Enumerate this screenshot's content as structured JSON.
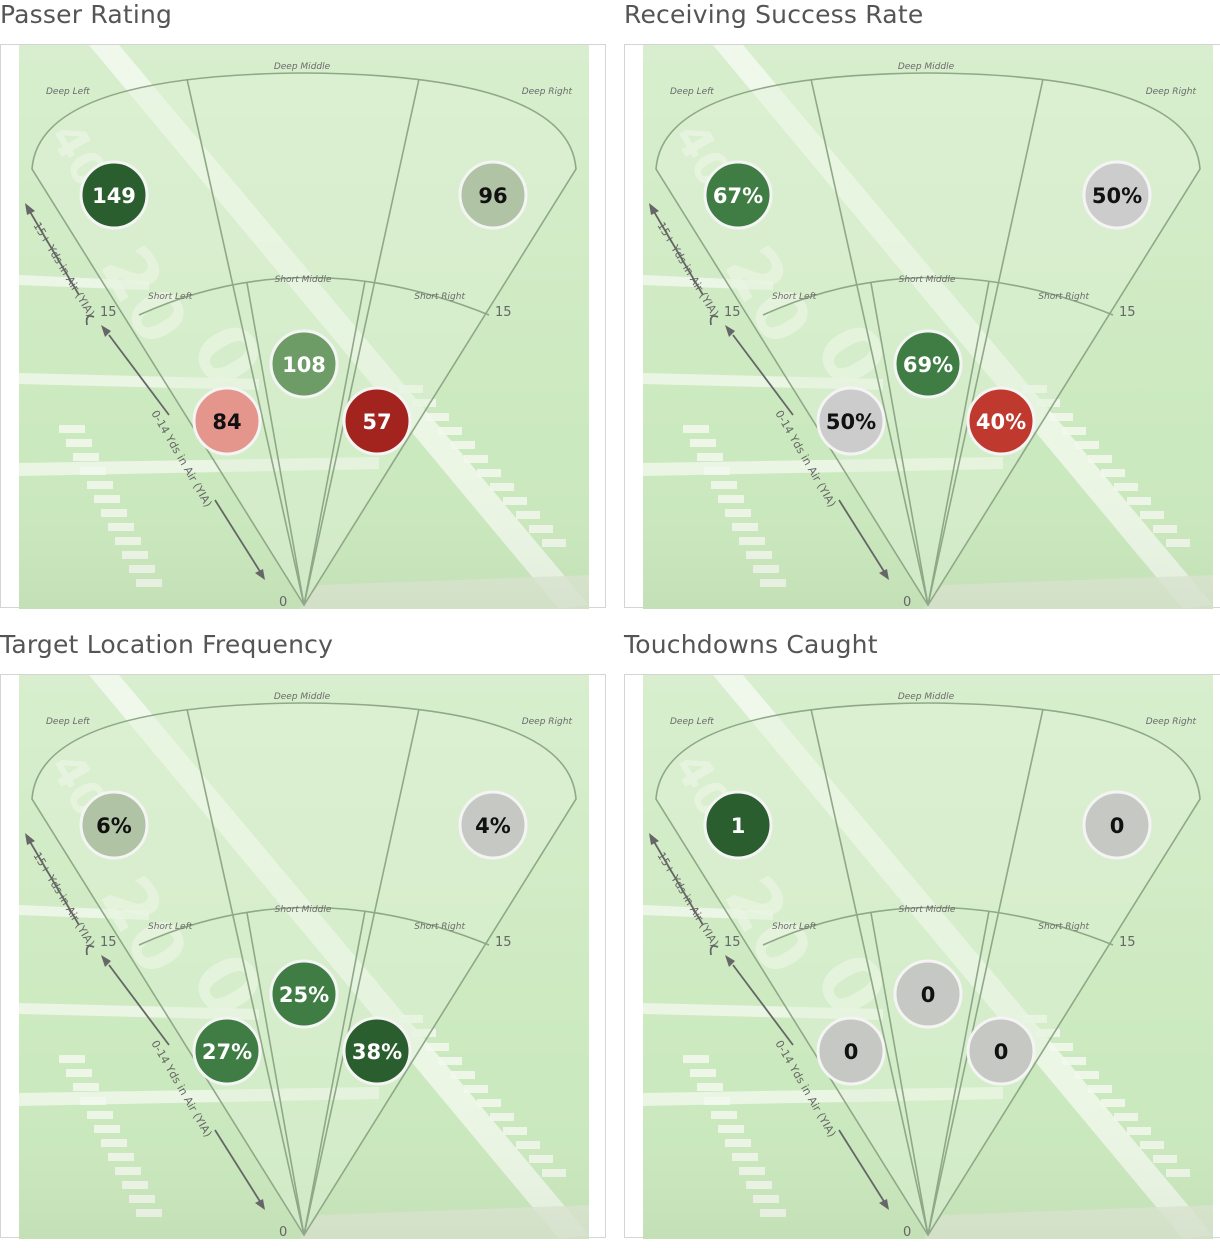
{
  "zones": {
    "deep_left": "Deep Left",
    "deep_middle": "Deep Middle",
    "deep_right": "Deep Right",
    "short_left": "Short Left",
    "short_middle": "Short Middle",
    "short_right": "Short Right"
  },
  "axis": {
    "deep_note": "15+ Yds in Air (YIA)",
    "short_note": "0-14 Yds in Air (YIA)",
    "mark_15": "15",
    "mark_0": "0"
  },
  "colors": {
    "dark_green": "#2b5e2f",
    "medium_green": "#3f7d44",
    "light_green": "#6d9c66",
    "pale_sage": "#b1c3a5",
    "neutral_gray": "#c6c9c3",
    "light_gray": "#cccccc",
    "pink": "#e4968c",
    "red": "#c0392f",
    "dark_red": "#a3241f",
    "field": "#cbe9be"
  },
  "chart_data": [
    {
      "type": "heatmap",
      "title": "Passer Rating",
      "zones": [
        {
          "zone": "deep_left",
          "label": "149",
          "value": 149,
          "color": "#2b5e2f",
          "text_color": "#ffffff"
        },
        {
          "zone": "deep_right",
          "label": "96",
          "value": 96,
          "color": "#b1c3a5",
          "text_color": "#111111"
        },
        {
          "zone": "short_middle",
          "label": "108",
          "value": 108,
          "color": "#6d9c66",
          "text_color": "#ffffff"
        },
        {
          "zone": "short_left",
          "label": "84",
          "value": 84,
          "color": "#e4968c",
          "text_color": "#111111"
        },
        {
          "zone": "short_right",
          "label": "57",
          "value": 57,
          "color": "#a3241f",
          "text_color": "#ffffff"
        }
      ]
    },
    {
      "type": "heatmap",
      "title": "Receiving Success Rate",
      "zones": [
        {
          "zone": "deep_left",
          "label": "67%",
          "value": 67,
          "color": "#3f7d44",
          "text_color": "#ffffff"
        },
        {
          "zone": "deep_right",
          "label": "50%",
          "value": 50,
          "color": "#cccccc",
          "text_color": "#111111"
        },
        {
          "zone": "short_middle",
          "label": "69%",
          "value": 69,
          "color": "#3f7d44",
          "text_color": "#ffffff"
        },
        {
          "zone": "short_left",
          "label": "50%",
          "value": 50,
          "color": "#cccccc",
          "text_color": "#111111"
        },
        {
          "zone": "short_right",
          "label": "40%",
          "value": 40,
          "color": "#c0392f",
          "text_color": "#ffffff"
        }
      ]
    },
    {
      "type": "heatmap",
      "title": "Target Location Frequency",
      "zones": [
        {
          "zone": "deep_left",
          "label": "6%",
          "value": 6,
          "color": "#b1c3a5",
          "text_color": "#111111"
        },
        {
          "zone": "deep_right",
          "label": "4%",
          "value": 4,
          "color": "#c6c9c3",
          "text_color": "#111111"
        },
        {
          "zone": "short_middle",
          "label": "25%",
          "value": 25,
          "color": "#3f7d44",
          "text_color": "#ffffff"
        },
        {
          "zone": "short_left",
          "label": "27%",
          "value": 27,
          "color": "#3f7d44",
          "text_color": "#ffffff"
        },
        {
          "zone": "short_right",
          "label": "38%",
          "value": 38,
          "color": "#2b5e2f",
          "text_color": "#ffffff"
        }
      ]
    },
    {
      "type": "heatmap",
      "title": "Touchdowns Caught",
      "zones": [
        {
          "zone": "deep_left",
          "label": "1",
          "value": 1,
          "color": "#2b5e2f",
          "text_color": "#ffffff"
        },
        {
          "zone": "deep_right",
          "label": "0",
          "value": 0,
          "color": "#c6c9c3",
          "text_color": "#111111"
        },
        {
          "zone": "short_middle",
          "label": "0",
          "value": 0,
          "color": "#c6c9c3",
          "text_color": "#111111"
        },
        {
          "zone": "short_left",
          "label": "0",
          "value": 0,
          "color": "#c6c9c3",
          "text_color": "#111111"
        },
        {
          "zone": "short_right",
          "label": "0",
          "value": 0,
          "color": "#c6c9c3",
          "text_color": "#111111"
        }
      ]
    }
  ]
}
